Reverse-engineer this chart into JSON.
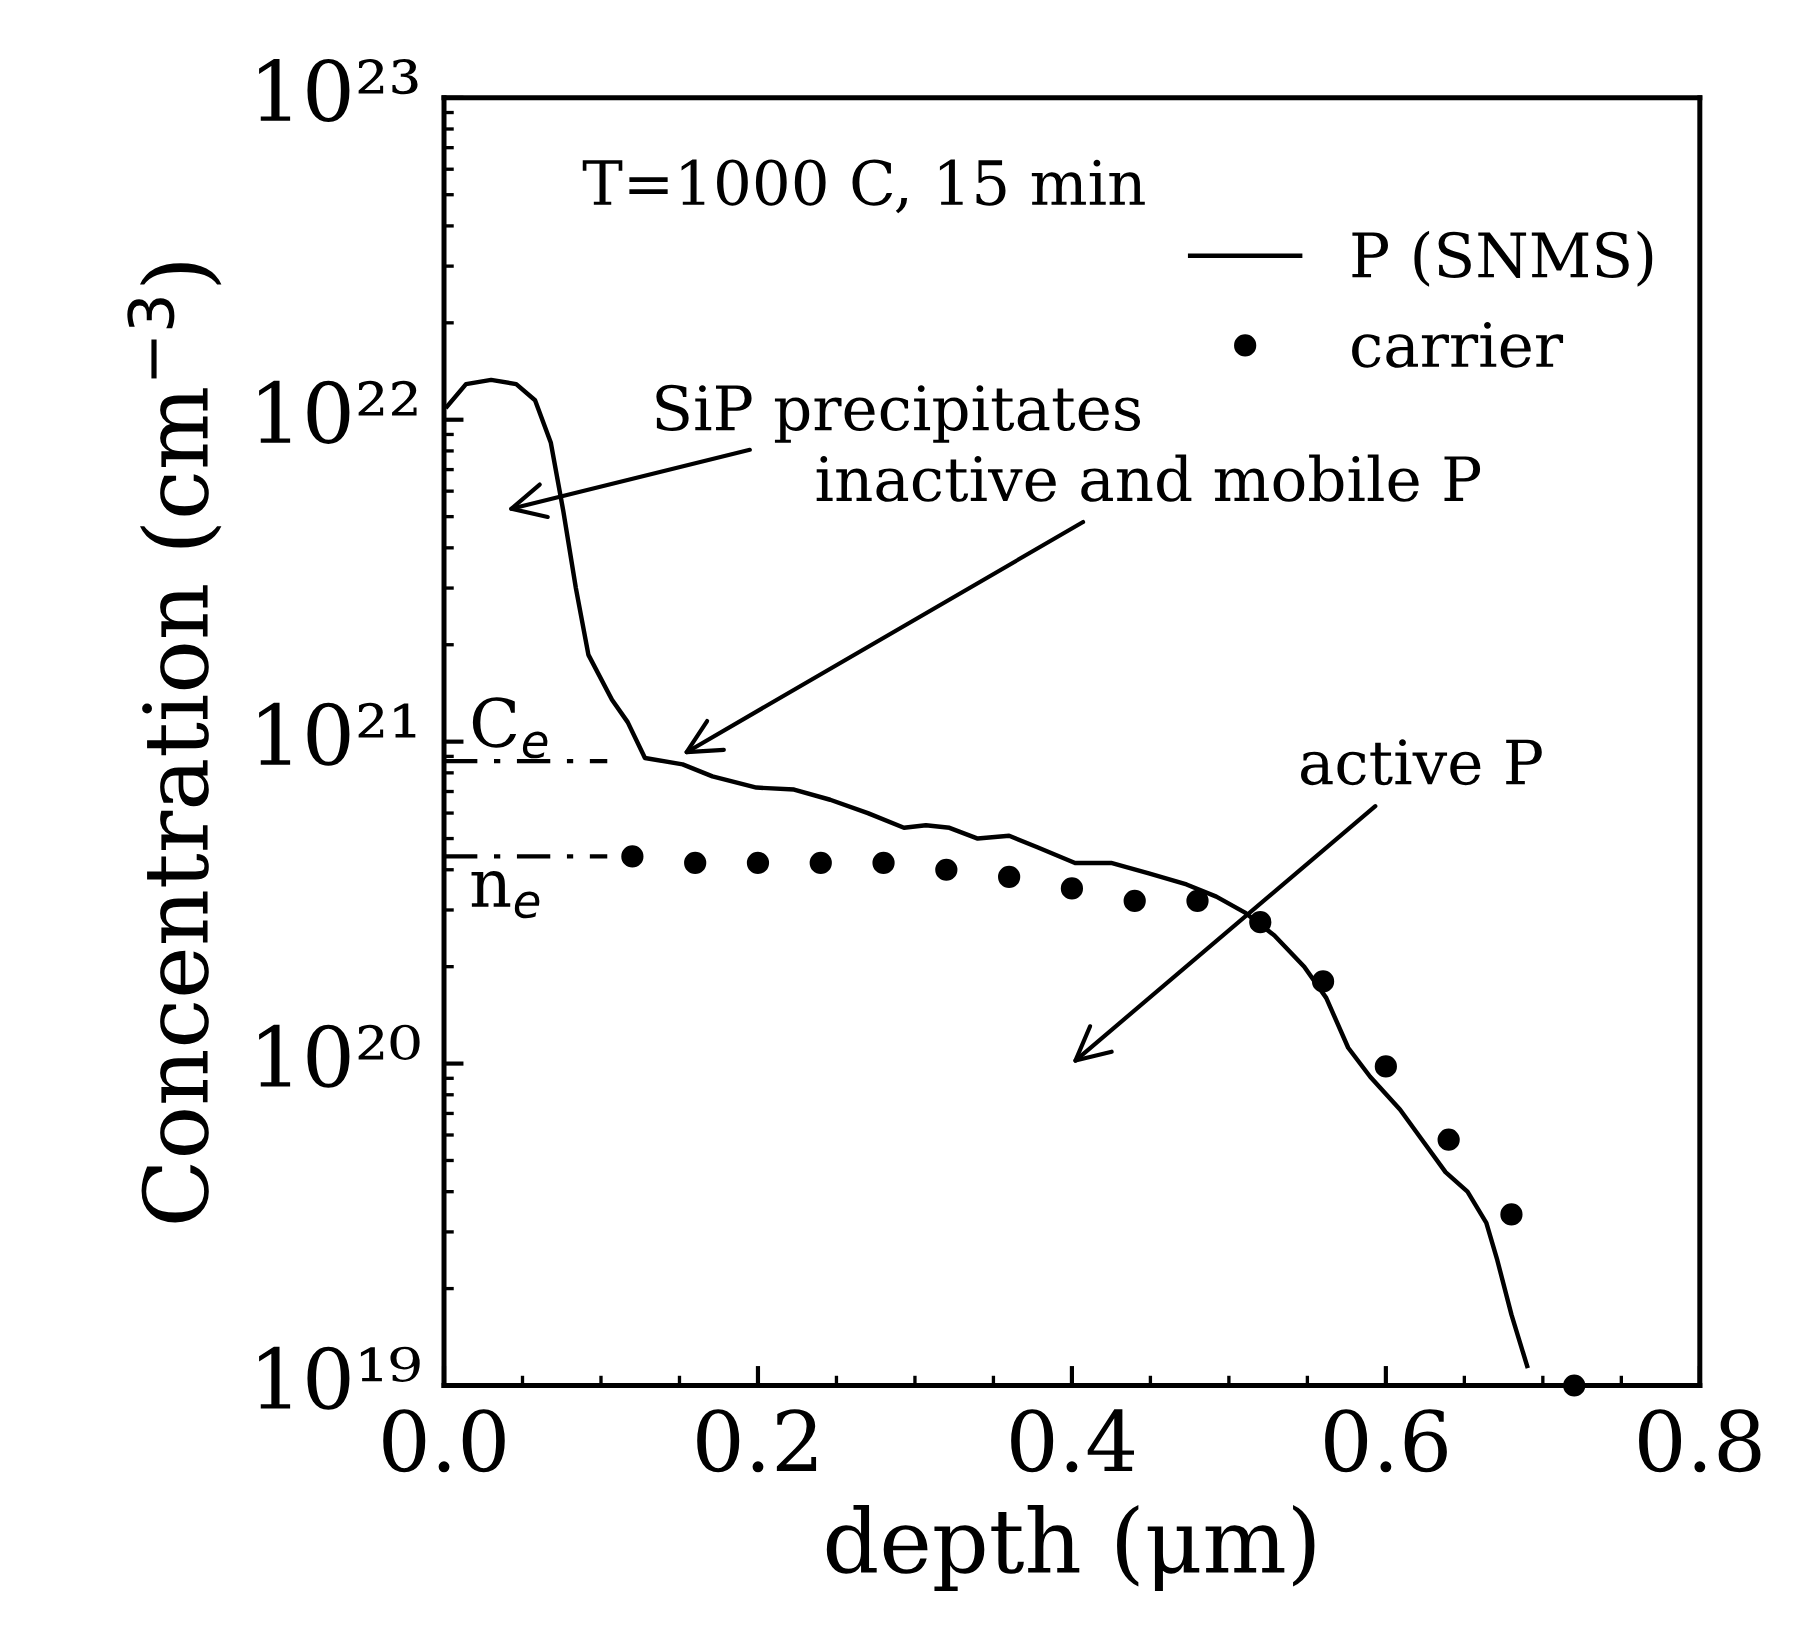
{
  "chart_data": {
    "type": "line",
    "xlabel": "depth (μm)",
    "ylabel": "Concentration (cm$^{−3}$)",
    "log": "y",
    "xlim": [
      0,
      0.8
    ],
    "xticks": [
      {
        "value": 0,
        "label": "0.0"
      },
      0.2,
      0.4,
      0.6,
      0.8
    ],
    "ylim": [
      1e+19,
      1e+23
    ],
    "yticks": [
      {
        "value": 1e+19,
        "label": "10¹⁹"
      },
      {
        "value": 1e+20,
        "label": "10²⁰"
      },
      {
        "value": 1e+21,
        "label": "10²¹"
      },
      {
        "value": 1e+22,
        "label": "10²²"
      },
      {
        "value": 1e+23,
        "label": "10²³"
      }
    ],
    "grid": false,
    "legend": "top right",
    "series": [
      {
        "name": "P (SNMS)",
        "color": "#000000",
        "marker": "none",
        "line_style": "solid",
        "x": [
          0.002,
          0.014,
          0.03,
          0.046,
          0.058,
          0.068,
          0.076,
          0.084,
          0.092,
          0.107,
          0.117,
          0.128,
          0.152,
          0.171,
          0.199,
          0.223,
          0.246,
          0.27,
          0.293,
          0.307,
          0.322,
          0.34,
          0.36,
          0.378,
          0.402,
          0.425,
          0.449,
          0.473,
          0.492,
          0.51,
          0.529,
          0.548,
          0.562,
          0.576,
          0.59,
          0.609,
          0.623,
          0.638,
          0.652,
          0.664,
          0.671,
          0.68,
          0.69
        ],
        "values": [
          1.1e+22,
          1.29e+22,
          1.33e+22,
          1.29e+22,
          1.15e+22,
          8.5e+21,
          5.2e+21,
          3e+21,
          1.86e+21,
          1.35e+21,
          1.15e+21,
          8.9e+20,
          8.5e+20,
          7.8e+20,
          7.2e+20,
          7.1e+20,
          6.6e+20,
          6e+20,
          5.4e+20,
          5.5e+20,
          5.4e+20,
          5e+20,
          5.1e+20,
          4.7e+20,
          4.2e+20,
          4.2e+20,
          3.9e+20,
          3.6e+20,
          3.3e+20,
          2.95e+20,
          2.5e+20,
          2e+20,
          1.6e+20,
          1.12e+20,
          9.1e+19,
          7.2e+19,
          5.8e+19,
          4.6e+19,
          4e+19,
          3.2e+19,
          2.45e+19,
          1.66e+19,
          1.15e+19
        ]
      },
      {
        "name": "carrier",
        "type": "scatter",
        "color": "#000000",
        "marker": "circle",
        "x": [
          0.12,
          0.16,
          0.2,
          0.24,
          0.28,
          0.32,
          0.36,
          0.4,
          0.44,
          0.48,
          0.52,
          0.56,
          0.6,
          0.64,
          0.68,
          0.72
        ],
        "values": [
          4.4e+20,
          4.2e+20,
          4.2e+20,
          4.2e+20,
          4.2e+20,
          4e+20,
          3.8e+20,
          3.5e+20,
          3.2e+20,
          3.2e+20,
          2.75e+20,
          1.8e+20,
          9.8e+19,
          5.8e+19,
          3.4e+19,
          1e+19
        ]
      }
    ],
    "ref_lines": [
      {
        "axis": "y",
        "value": 8.7e+20,
        "label": "C$_{e}$",
        "line_style": "dashed",
        "color": "#000000"
      },
      {
        "axis": "y",
        "value": 4.4e+20,
        "label": "n$_{e}$",
        "line_style": "dashed",
        "color": "#000000"
      }
    ],
    "annotations": [
      "T=1000 C, 15 min",
      "SiP precipitates",
      "inactive and mobile P",
      "active P"
    ]
  }
}
